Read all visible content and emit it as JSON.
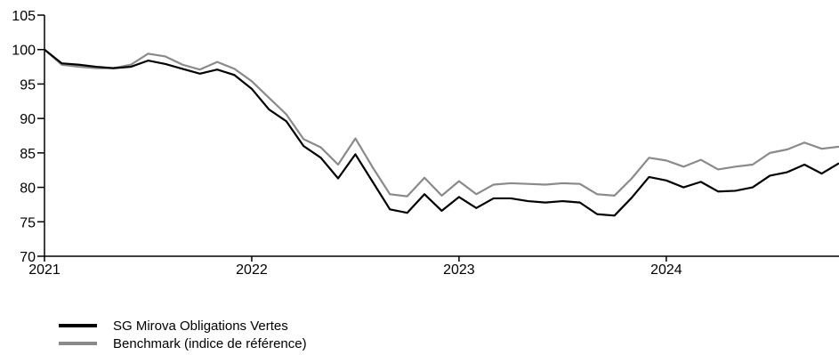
{
  "chart_data": {
    "type": "line",
    "title": "",
    "xlabel": "",
    "ylabel": "",
    "ylim": [
      70,
      105
    ],
    "yticks": [
      70,
      75,
      80,
      85,
      90,
      95,
      100,
      105
    ],
    "xlim": [
      "2021-01",
      "2024-11"
    ],
    "xticks": [
      {
        "label": "2021",
        "x": "2021-01"
      },
      {
        "label": "2022",
        "x": "2022-01"
      },
      {
        "label": "2023",
        "x": "2023-01"
      },
      {
        "label": "2024",
        "x": "2024-01"
      }
    ],
    "grid": false,
    "legend_position": "bottom-left",
    "x": [
      "2021-01",
      "2021-02",
      "2021-03",
      "2021-04",
      "2021-05",
      "2021-06",
      "2021-07",
      "2021-08",
      "2021-09",
      "2021-10",
      "2021-11",
      "2021-12",
      "2022-01",
      "2022-02",
      "2022-03",
      "2022-04",
      "2022-05",
      "2022-06",
      "2022-07",
      "2022-08",
      "2022-09",
      "2022-10",
      "2022-11",
      "2022-12",
      "2023-01",
      "2023-02",
      "2023-03",
      "2023-04",
      "2023-05",
      "2023-06",
      "2023-07",
      "2023-08",
      "2023-09",
      "2023-10",
      "2023-11",
      "2023-12",
      "2024-01",
      "2024-02",
      "2024-03",
      "2024-04",
      "2024-05",
      "2024-06",
      "2024-07",
      "2024-08",
      "2024-09",
      "2024-10",
      "2024-11"
    ],
    "series": [
      {
        "name": "SG Mirova Obligations Vertes",
        "color": "#000000",
        "values": [
          100,
          98.0,
          97.8,
          97.5,
          97.3,
          97.5,
          98.4,
          97.9,
          97.2,
          96.5,
          97.1,
          96.3,
          94.3,
          91.3,
          89.6,
          86.0,
          84.3,
          81.3,
          84.8,
          80.8,
          76.8,
          76.3,
          79.0,
          76.6,
          78.6,
          77.0,
          78.4,
          78.4,
          78.0,
          77.8,
          78.0,
          77.8,
          76.1,
          75.9,
          78.5,
          81.5,
          81.0,
          80.0,
          80.8,
          79.4,
          79.5,
          80.0,
          81.7,
          82.2,
          83.3,
          82.0,
          83.5
        ]
      },
      {
        "name": "Benchmark (indice de référence)",
        "color": "#8a8a8a",
        "values": [
          100,
          97.8,
          97.5,
          97.3,
          97.3,
          97.8,
          99.4,
          99.0,
          97.8,
          97.1,
          98.2,
          97.2,
          95.4,
          93.0,
          90.6,
          87.0,
          85.8,
          83.3,
          87.1,
          82.9,
          79.0,
          78.7,
          81.4,
          78.8,
          80.9,
          79.0,
          80.4,
          80.6,
          80.5,
          80.4,
          80.6,
          80.5,
          79.0,
          78.8,
          81.3,
          84.3,
          83.9,
          83.0,
          84.0,
          82.6,
          83.0,
          83.3,
          85.0,
          85.5,
          86.5,
          85.6,
          85.9
        ]
      }
    ]
  }
}
